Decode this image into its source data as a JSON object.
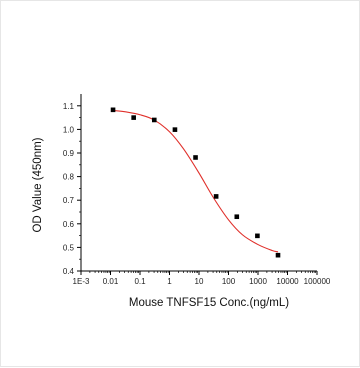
{
  "chart_data": {
    "type": "scatter",
    "title": "",
    "xlabel": "Mouse TNFSF15 Conc.(ng/mL)",
    "ylabel": "OD Value (450nm)",
    "x_scale": "log",
    "xlim": [
      0.001,
      100000
    ],
    "ylim": [
      0.4,
      1.15
    ],
    "x_ticks": [
      "1E-3",
      "0.01",
      "0.1",
      "1",
      "10",
      "100",
      "1000",
      "10000",
      "100000"
    ],
    "y_ticks": [
      "0.4",
      "0.5",
      "0.6",
      "0.7",
      "0.8",
      "0.9",
      "1.0",
      "1.1"
    ],
    "grid": false,
    "series": [
      {
        "kind": "points",
        "marker": "square",
        "color": "#000000",
        "x": [
          0.0122,
          0.061,
          0.305,
          1.53,
          7.63,
          38.1,
          191,
          954,
          4770
        ],
        "y": [
          1.083,
          1.05,
          1.04,
          0.999,
          0.881,
          0.716,
          0.63,
          0.549,
          0.467
        ]
      },
      {
        "kind": "fit_curve",
        "color": "#e0302b",
        "x": [
          0.0122,
          0.03,
          0.1,
          0.3,
          1,
          3,
          10,
          30,
          100,
          300,
          1000,
          3000,
          4770
        ],
        "y": [
          1.08,
          1.075,
          1.062,
          1.04,
          0.99,
          0.917,
          0.815,
          0.713,
          0.617,
          0.553,
          0.512,
          0.487,
          0.481
        ]
      }
    ]
  }
}
